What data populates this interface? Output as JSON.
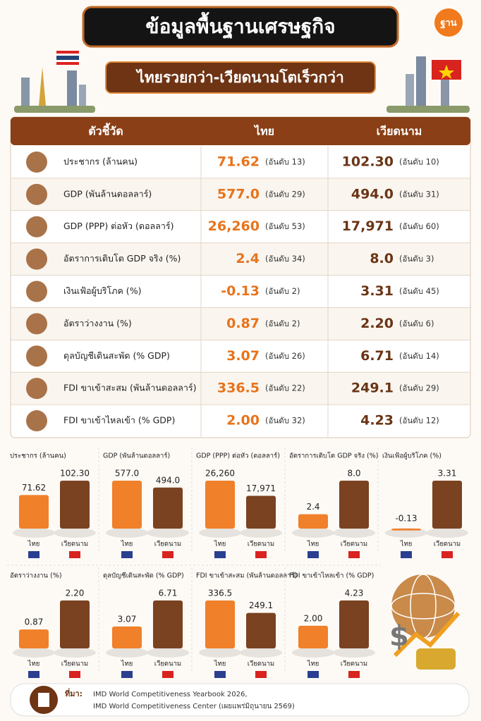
{
  "header": {
    "title": "ข้อมูลพื้นฐานเศรษฐกิจ",
    "subtitle": "ไทยรวยกว่า-เวียดนามโตเร็วกว่า",
    "logo": "ฐาน"
  },
  "table": {
    "columns": [
      "ตัวชี้วัด",
      "ไทย",
      "เวียดนาม"
    ],
    "rows": [
      [
        "ประชากร (ล้านคน)",
        "71.62",
        "(อันดับ 13)",
        "102.30",
        "(อันดับ 10)"
      ],
      [
        "GDP (พันล้านดอลลาร์)",
        "577.0",
        "(อันดับ 29)",
        "494.0",
        "(อันดับ 31)"
      ],
      [
        "GDP (PPP) ต่อหัว (ดอลลาร์)",
        "26,260",
        "(อันดับ 53)",
        "17,971",
        "(อันดับ 60)"
      ],
      [
        "อัตราการเติบโต GDP จริง (%)",
        "2.4",
        "(อันดับ 34)",
        "8.0",
        "(อันดับ 3)"
      ],
      [
        "เงินเฟ้อผู้บริโภค (%)",
        "-0.13",
        "(อันดับ 2)",
        "3.31",
        "(อันดับ 45)"
      ],
      [
        "อัตราว่างงาน (%)",
        "0.87",
        "(อันดับ 2)",
        "2.20",
        "(อันดับ 6)"
      ],
      [
        "ดุลบัญชีเดินสะพัด (% GDP)",
        "3.07",
        "(อันดับ 26)",
        "6.71",
        "(อันดับ 14)"
      ],
      [
        "FDI ขาเข้าสะสม (พันล้านดอลลาร์)",
        "336.5",
        "(อันดับ 22)",
        "249.1",
        "(อันดับ 29)"
      ],
      [
        "FDI ขาเข้าไหลเข้า (% GDP)",
        "2.00",
        "(อันดับ 32)",
        "4.23",
        "(อันดับ 12)"
      ]
    ]
  },
  "chart_data": [
    {
      "type": "bar",
      "title": "ประชากร (ล้านคน)",
      "categories": [
        "ไทย",
        "เวียดนาม"
      ],
      "values": [
        71.62,
        102.3
      ],
      "value_labels": [
        "71.62",
        "102.30"
      ],
      "colors": [
        "#f0802a",
        "#7a4220"
      ]
    },
    {
      "type": "bar",
      "title": "GDP (พันล้านดอลลาร์)",
      "categories": [
        "ไทย",
        "เวียดนาม"
      ],
      "values": [
        577,
        494
      ],
      "value_labels": [
        "577.0",
        "494.0"
      ],
      "colors": [
        "#f0802a",
        "#7a4220"
      ]
    },
    {
      "type": "bar",
      "title": "GDP (PPP) ต่อหัว (ดอลลาร์)",
      "categories": [
        "ไทย",
        "เวียดนาม"
      ],
      "values": [
        26260,
        17971
      ],
      "value_labels": [
        "26,260",
        "17,971"
      ],
      "colors": [
        "#f0802a",
        "#7a4220"
      ]
    },
    {
      "type": "bar",
      "title": "อัตราการเติบโต GDP จริง (%)",
      "categories": [
        "ไทย",
        "เวียดนาม"
      ],
      "values": [
        2.4,
        8
      ],
      "value_labels": [
        "2.4",
        "8.0"
      ],
      "colors": [
        "#f0802a",
        "#7a4220"
      ]
    },
    {
      "type": "bar",
      "title": "เงินเฟ้อผู้บริโภค (%)",
      "categories": [
        "ไทย",
        "เวียดนาม"
      ],
      "values": [
        -0.13,
        3.31
      ],
      "colors": [
        "#f0802a",
        "#7a4220"
      ]
    },
    {
      "type": "bar",
      "title": "อัตราว่างงาน (%)",
      "categories": [
        "ไทย",
        "เวียดนาม"
      ],
      "values": [
        0.87,
        2.2
      ],
      "value_labels": [
        "0.87",
        "2.20"
      ],
      "colors": [
        "#f0802a",
        "#7a4220"
      ]
    },
    {
      "type": "bar",
      "title": "ดุลบัญชีเดินสะพัด (% GDP)",
      "categories": [
        "ไทย",
        "เวียดนาม"
      ],
      "values": [
        3.07,
        6.71
      ],
      "colors": [
        "#f0802a",
        "#7a4220"
      ]
    },
    {
      "type": "bar",
      "title": "FDI ขาเข้าสะสม (พันล้านดอลลาร์)",
      "categories": [
        "ไทย",
        "เวียดนาม"
      ],
      "values": [
        336.5,
        249.1
      ],
      "colors": [
        "#f0802a",
        "#7a4220"
      ]
    },
    {
      "type": "bar",
      "title": "FDI ขาเข้าไหลเข้า (% GDP)",
      "categories": [
        "ไทย",
        "เวียดนาม"
      ],
      "values": [
        2,
        4.23
      ],
      "value_labels": [
        "2.00",
        "4.23"
      ],
      "colors": [
        "#f0802a",
        "#7a4220"
      ]
    }
  ],
  "source": {
    "label": "ที่มา:",
    "lines": [
      "IMD World Competitiveness Yearbook 2026,",
      "IMD World Competitiveness Center (เผยแพร่มิถุนายน 2569)"
    ]
  }
}
